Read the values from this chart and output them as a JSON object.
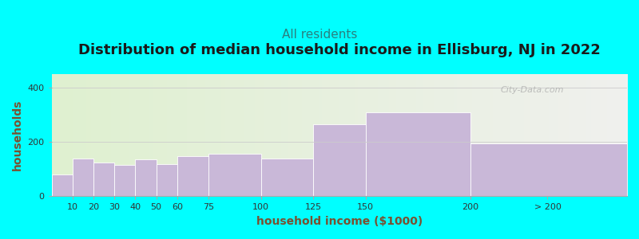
{
  "title": "Distribution of median household income in Ellisburg, NJ in 2022",
  "subtitle": "All residents",
  "xlabel": "household income ($1000)",
  "ylabel": "households",
  "background_color": "#00FFFF",
  "plot_bg_left": "#dff0d0",
  "plot_bg_right": "#f0f0ee",
  "bar_color": "#c9b8d8",
  "bar_edge_color": "#ffffff",
  "categories": [
    "10",
    "20",
    "30",
    "40",
    "50",
    "60",
    "75",
    "100",
    "125",
    "150",
    "200",
    "> 200"
  ],
  "left_edges": [
    0,
    10,
    20,
    30,
    40,
    50,
    60,
    75,
    100,
    125,
    150,
    200
  ],
  "widths": [
    10,
    10,
    10,
    10,
    10,
    10,
    15,
    25,
    25,
    25,
    50,
    75
  ],
  "values": [
    80,
    140,
    125,
    115,
    135,
    120,
    148,
    158,
    140,
    265,
    310,
    195
  ],
  "xlim": [
    0,
    275
  ],
  "ylim": [
    0,
    450
  ],
  "yticks": [
    0,
    200,
    400
  ],
  "xtick_positions": [
    10,
    20,
    30,
    40,
    50,
    60,
    75,
    100,
    125,
    150,
    200,
    237
  ],
  "xtick_labels": [
    "10",
    "20",
    "30",
    "40",
    "50",
    "60",
    "75",
    "100",
    "125",
    "150",
    "200",
    "> 200"
  ],
  "title_fontsize": 13,
  "subtitle_fontsize": 11,
  "axis_label_fontsize": 10,
  "tick_fontsize": 8,
  "title_color": "#1a1a1a",
  "subtitle_color": "#2a8080",
  "axis_label_color": "#7a5030",
  "watermark_text": "City-Data.com"
}
